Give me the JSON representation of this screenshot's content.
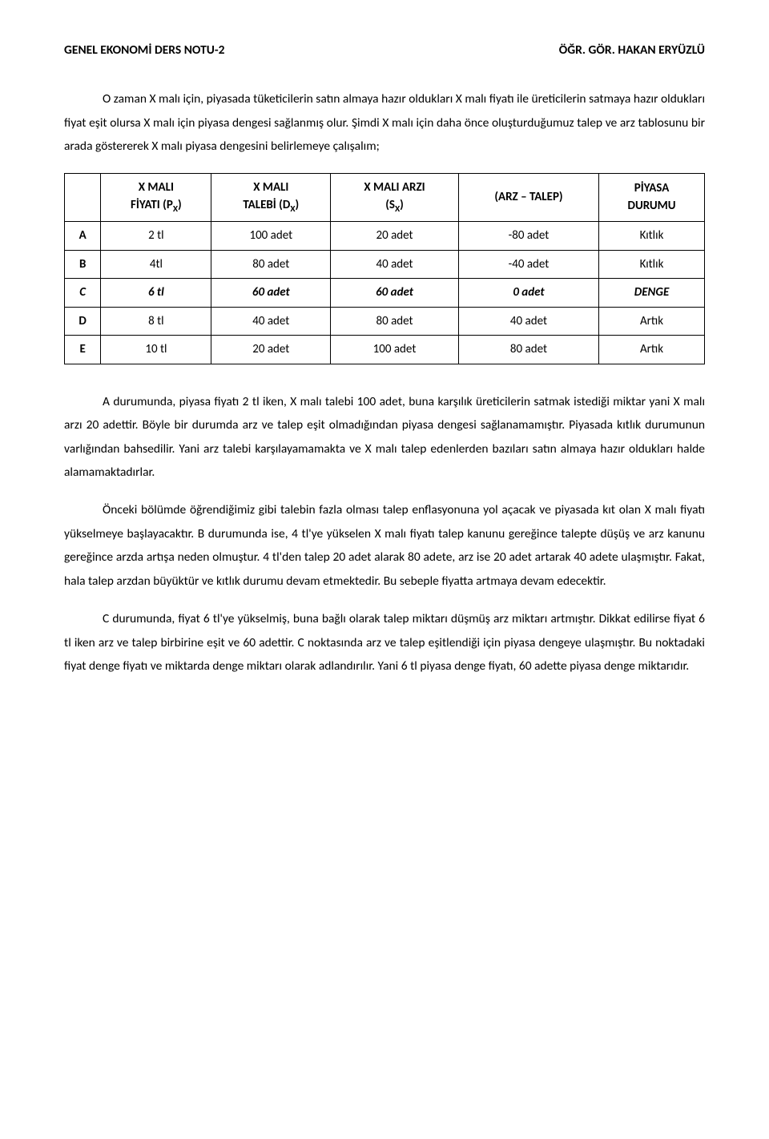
{
  "header": {
    "left": "GENEL EKONOMİ DERS NOTU-2",
    "right": "ÖĞR. GÖR. HAKAN ERYÜZLÜ"
  },
  "paragraphs": {
    "p1": "O zaman X malı için, piyasada tüketicilerin satın almaya hazır oldukları X malı fiyatı ile üreticilerin satmaya hazır oldukları fiyat eşit olursa X malı için piyasa dengesi sağlanmış olur. Şimdi X malı için daha önce oluşturduğumuz talep ve arz tablosunu bir arada göstererek X malı piyasa dengesini belirlemeye çalışalım;",
    "p2": "A durumunda, piyasa fiyatı 2 tl iken, X malı talebi 100 adet, buna karşılık üreticilerin satmak istediği miktar yani X malı arzı 20 adettir. Böyle bir durumda arz ve talep eşit olmadığından piyasa dengesi sağlanamamıştır. Piyasada kıtlık durumunun varlığından bahsedilir. Yani arz talebi karşılayamamakta ve X malı talep edenlerden bazıları satın almaya hazır oldukları halde alamamaktadırlar.",
    "p3": "Önceki bölümde öğrendiğimiz gibi talebin fazla olması talep enflasyonuna yol açacak ve piyasada kıt olan X malı fiyatı yükselmeye başlayacaktır. B durumunda ise, 4 tl'ye yükselen X malı fiyatı talep kanunu gereğince talepte düşüş ve arz kanunu gereğince arzda artışa neden olmuştur. 4 tl'den talep 20 adet alarak 80 adete, arz ise 20 adet artarak 40 adete ulaşmıştır. Fakat, hala talep arzdan büyüktür ve kıtlık durumu devam etmektedir. Bu sebeple fiyatta artmaya devam edecektir.",
    "p4": "C durumunda, fiyat 6 tl'ye yükselmiş, buna bağlı olarak talep miktarı düşmüş arz miktarı artmıştır. Dikkat edilirse fiyat 6 tl iken arz ve talep birbirine eşit ve 60 adettir. C noktasında arz ve talep eşitlendiği için piyasa dengeye ulaşmıştır. Bu noktadaki fiyat denge fiyatı ve miktarda denge miktarı olarak adlandırılır. Yani 6 tl piyasa denge fiyatı, 60 adette piyasa denge miktarıdır."
  },
  "table": {
    "headers": {
      "c1_l1": "X MALI",
      "c1_l2_a": "FİYATI (P",
      "c1_l2_b": ")",
      "c2_l1": "X MALI",
      "c2_l2_a": "TALEBİ (D",
      "c2_l2_b": ")",
      "c3_l1": "X MALI ARZI",
      "c3_l2_a": "(S",
      "c3_l2_b": ")",
      "c4": "(ARZ – TALEP)",
      "c5_l1": "PİYASA",
      "c5_l2": "DURUMU",
      "sub": "X"
    },
    "rows": [
      {
        "label": "A",
        "price": "2 tl",
        "demand": "100 adet",
        "supply": "20 adet",
        "diff": "-80 adet",
        "status": "Kıtlık",
        "bold": false
      },
      {
        "label": "B",
        "price": "4tl",
        "demand": "80 adet",
        "supply": "40 adet",
        "diff": "-40 adet",
        "status": "Kıtlık",
        "bold": false
      },
      {
        "label": "C",
        "price": "6 tl",
        "demand": "60 adet",
        "supply": "60 adet",
        "diff": "0 adet",
        "status": "DENGE",
        "bold": true
      },
      {
        "label": "D",
        "price": "8 tl",
        "demand": "40 adet",
        "supply": "80 adet",
        "diff": "40 adet",
        "status": "Artık",
        "bold": false
      },
      {
        "label": "E",
        "price": "10 tl",
        "demand": "20 adet",
        "supply": "100 adet",
        "diff": "80 adet",
        "status": "Artık",
        "bold": false
      }
    ]
  }
}
